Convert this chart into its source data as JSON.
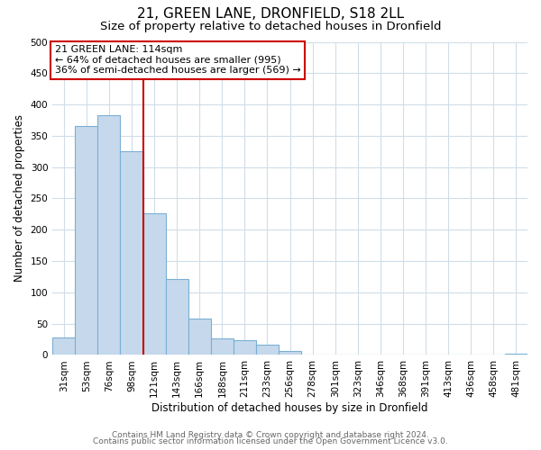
{
  "title": "21, GREEN LANE, DRONFIELD, S18 2LL",
  "subtitle": "Size of property relative to detached houses in Dronfield",
  "xlabel": "Distribution of detached houses by size in Dronfield",
  "ylabel": "Number of detached properties",
  "bar_labels": [
    "31sqm",
    "53sqm",
    "76sqm",
    "98sqm",
    "121sqm",
    "143sqm",
    "166sqm",
    "188sqm",
    "211sqm",
    "233sqm",
    "256sqm",
    "278sqm",
    "301sqm",
    "323sqm",
    "346sqm",
    "368sqm",
    "391sqm",
    "413sqm",
    "436sqm",
    "458sqm",
    "481sqm"
  ],
  "bar_values": [
    28,
    365,
    383,
    325,
    226,
    121,
    58,
    27,
    23,
    17,
    6,
    1,
    0,
    0,
    0,
    0,
    0,
    0,
    0,
    0,
    2
  ],
  "bar_color": "#c6d9ec",
  "bar_edge_color": "#7aafd4",
  "vline_color": "#cc0000",
  "vline_x_index": 4,
  "annotation_text_line1": "21 GREEN LANE: 114sqm",
  "annotation_text_line2": "← 64% of detached houses are smaller (995)",
  "annotation_text_line3": "36% of semi-detached houses are larger (569) →",
  "annotation_box_color": "#ffffff",
  "annotation_box_edge": "#cc0000",
  "ylim": [
    0,
    500
  ],
  "yticks": [
    0,
    50,
    100,
    150,
    200,
    250,
    300,
    350,
    400,
    450,
    500
  ],
  "footer1": "Contains HM Land Registry data © Crown copyright and database right 2024.",
  "footer2": "Contains public sector information licensed under the Open Government Licence v3.0.",
  "background_color": "#ffffff",
  "grid_color": "#d0dde8",
  "title_fontsize": 11,
  "subtitle_fontsize": 9.5,
  "axis_label_fontsize": 8.5,
  "tick_fontsize": 7.5,
  "annotation_fontsize": 8,
  "footer_fontsize": 6.5
}
